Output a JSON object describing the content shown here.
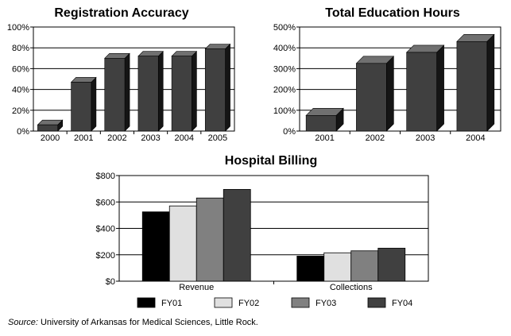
{
  "source": {
    "label": "Source:",
    "text": "University of Arkansas for Medical Sciences, Little Rock."
  },
  "chart_data": [
    {
      "type": "bar",
      "title": "Registration Accuracy",
      "categories": [
        "2000",
        "2001",
        "2002",
        "2003",
        "2004",
        "2005"
      ],
      "values": [
        6,
        47,
        70,
        72,
        72,
        79
      ],
      "ylim": [
        0,
        100
      ],
      "yticks": [
        "0%",
        "20%",
        "40%",
        "60%",
        "80%",
        "100%"
      ],
      "grid": true,
      "colors": {
        "bar": "#404040",
        "top": "#707070",
        "side": "#151515"
      }
    },
    {
      "type": "bar",
      "title": "Total Education Hours",
      "categories": [
        "2001",
        "2002",
        "2003",
        "2004"
      ],
      "values": [
        75,
        325,
        378,
        430
      ],
      "ylim": [
        0,
        500
      ],
      "yticks": [
        "0%",
        "100%",
        "200%",
        "300%",
        "400%",
        "500%"
      ],
      "grid": true,
      "colors": {
        "bar": "#404040",
        "top": "#707070",
        "side": "#151515"
      }
    },
    {
      "type": "bar",
      "title": "Hospital Billing",
      "categories": [
        "Revenue",
        "Collections"
      ],
      "series": [
        {
          "name": "FY01",
          "values": [
            525,
            190
          ],
          "color": "#000000"
        },
        {
          "name": "FY02",
          "values": [
            570,
            215
          ],
          "color": "#e0e0e0"
        },
        {
          "name": "FY03",
          "values": [
            630,
            230
          ],
          "color": "#808080"
        },
        {
          "name": "FY04",
          "values": [
            695,
            250
          ],
          "color": "#404040"
        }
      ],
      "ylim": [
        0,
        800
      ],
      "yticks": [
        "$0",
        "$200",
        "$400",
        "$600",
        "$800"
      ],
      "grid": true,
      "legend": "bottom"
    }
  ]
}
